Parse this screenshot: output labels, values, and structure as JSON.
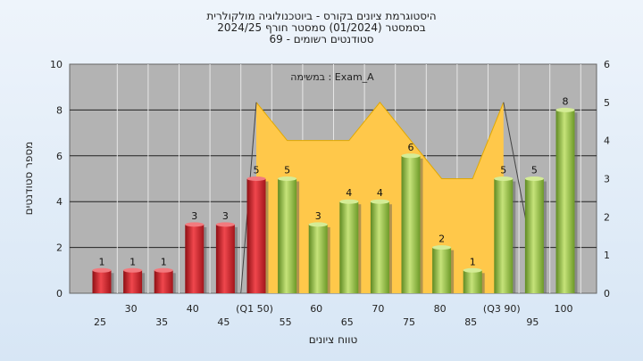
{
  "chart_data": {
    "type": "bar",
    "title_lines": [
      "היסטוגרמת ציונים בקורס - ביוטכנולוגיה מולקולרית",
      "בסמסטר  (01/2024)  סמסטר חורף  2024/25",
      "סטודנטים רשומים - 69"
    ],
    "annotation": "במשימה : Exam_A",
    "xlabel": "טווח ציונים",
    "ylabel": "מספר סטודנטים",
    "ylim": [
      0,
      10
    ],
    "y_ticks": [
      0,
      2,
      4,
      6,
      8,
      10
    ],
    "y2lim": [
      0,
      6
    ],
    "y2_ticks": [
      0,
      1,
      2,
      3,
      4,
      5,
      6
    ],
    "grid": true,
    "categories": [
      "25",
      "30",
      "35",
      "40",
      "45",
      "(Q1 50)",
      "55",
      "60",
      "65",
      "70",
      "75",
      "80",
      "85",
      "(Q3 90)",
      "95",
      "100"
    ],
    "values": [
      1,
      1,
      1,
      3,
      3,
      5,
      5,
      3,
      4,
      4,
      6,
      2,
      1,
      5,
      5,
      8
    ],
    "bar_groups": [
      "below_q1",
      "below_q1",
      "below_q1",
      "below_q1",
      "below_q1",
      "below_q1",
      "above_q1",
      "above_q1",
      "above_q1",
      "above_q1",
      "above_q1",
      "above_q1",
      "above_q1",
      "above_q1",
      "above_q1",
      "above_q1"
    ],
    "area_series": {
      "axis": "right",
      "categories": [
        "(Q1 50)",
        "55",
        "60",
        "65",
        "70",
        "75",
        "80",
        "85",
        "(Q3 90)"
      ],
      "values": [
        5,
        4,
        4,
        4,
        5,
        4,
        3,
        3,
        5
      ]
    },
    "colors": {
      "below_q1": "#e0272f",
      "above_q1": "#9bc44a",
      "area": "#ffc84a",
      "plot_bg": "#b3b3b3"
    }
  }
}
